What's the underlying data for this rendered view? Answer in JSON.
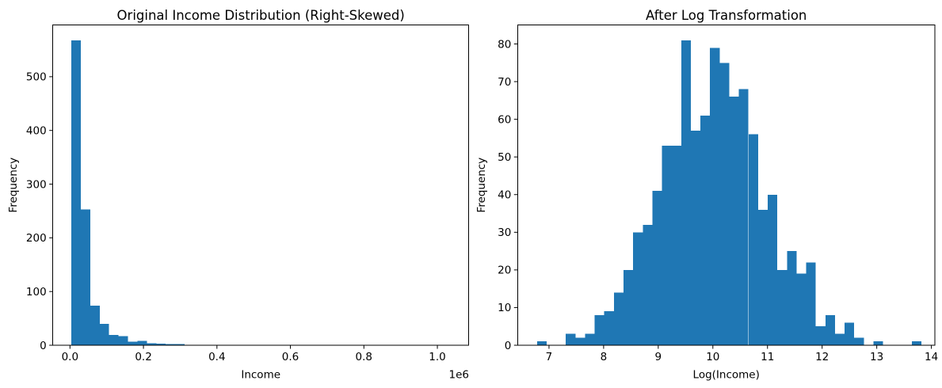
{
  "figure": {
    "background": "#ffffff",
    "bar_color": "#1f77b4",
    "text_color": "#000000",
    "spine_color": "#000000"
  },
  "chart_data": [
    {
      "type": "bar",
      "subtype": "histogram",
      "title": "Original Income Distribution (Right-Skewed)",
      "xlabel": "Income",
      "ylabel": "Frequency",
      "x_offset_label": "1e6",
      "legend": "none",
      "grid": false,
      "bin_start": 3700,
      "bin_width": 25700,
      "counts": [
        568,
        253,
        74,
        40,
        19,
        17,
        7,
        8,
        4,
        3,
        2,
        2,
        1,
        0,
        0,
        0,
        0,
        0,
        1,
        0,
        0,
        0,
        0,
        0,
        0,
        0,
        0,
        0,
        0,
        0,
        0,
        0,
        0,
        0,
        0,
        0,
        0,
        0,
        0,
        1
      ],
      "total_samples": 1000,
      "xlim": [
        -46600,
        1085500
      ],
      "ylim": [
        0,
        596.4
      ],
      "x_tick_values": [
        0,
        200000,
        400000,
        600000,
        800000,
        1000000
      ],
      "x_tick_labels": [
        "0.0",
        "0.2",
        "0.4",
        "0.6",
        "0.8",
        "1.0"
      ],
      "y_tick_values": [
        0,
        100,
        200,
        300,
        400,
        500
      ],
      "y_tick_labels": [
        "0",
        "100",
        "200",
        "300",
        "400",
        "500"
      ]
    },
    {
      "type": "bar",
      "subtype": "histogram",
      "title": "After Log Transformation",
      "xlabel": "Log(Income)",
      "ylabel": "Frequency",
      "x_offset_label": "",
      "legend": "none",
      "grid": false,
      "bin_start": 6.78,
      "bin_width": 0.176,
      "counts": [
        1,
        0,
        0,
        3,
        2,
        3,
        8,
        9,
        14,
        20,
        30,
        32,
        41,
        53,
        53,
        81,
        57,
        61,
        79,
        75,
        66,
        68,
        56,
        36,
        40,
        20,
        25,
        19,
        22,
        5,
        8,
        3,
        6,
        2,
        0,
        1,
        0,
        0,
        0,
        1
      ],
      "total_samples": 1000,
      "xlim": [
        6.425,
        14.064
      ],
      "ylim": [
        0,
        85.05
      ],
      "x_tick_values": [
        7,
        8,
        9,
        10,
        11,
        12,
        13,
        14
      ],
      "x_tick_labels": [
        "7",
        "8",
        "9",
        "10",
        "11",
        "12",
        "13",
        "14"
      ],
      "y_tick_values": [
        0,
        10,
        20,
        30,
        40,
        50,
        60,
        70,
        80
      ],
      "y_tick_labels": [
        "0",
        "10",
        "20",
        "30",
        "40",
        "50",
        "60",
        "70",
        "80"
      ]
    }
  ]
}
